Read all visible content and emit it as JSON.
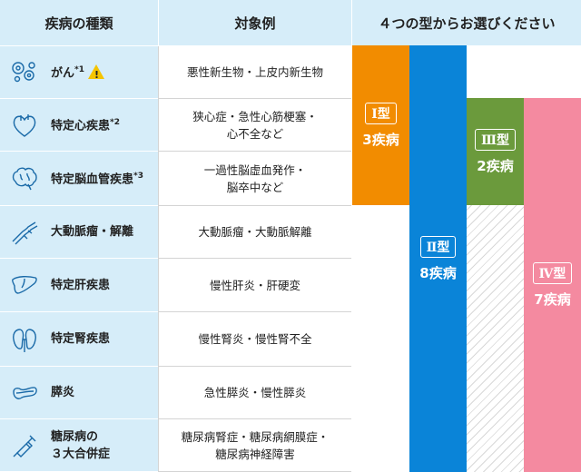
{
  "header": {
    "col1": "疾病の種類",
    "col2": "対象例",
    "col3": "４つの型からお選びください"
  },
  "rows": [
    {
      "icon": "cells-icon",
      "name": "がん",
      "note": "*1",
      "warning": true,
      "examples": [
        "悪性新生物・上皮内新生物"
      ]
    },
    {
      "icon": "heart-icon",
      "name": "特定心疾患",
      "note": "*2",
      "examples": [
        "狭心症・急性心筋梗塞・",
        "心不全など"
      ]
    },
    {
      "icon": "brain-icon",
      "name": "特定脳血管疾患",
      "note": "*3",
      "examples": [
        "一過性脳虚血発作・",
        "脳卒中など"
      ]
    },
    {
      "icon": "aorta-icon",
      "name": "大動脈瘤・解離",
      "note": "",
      "examples": [
        "大動脈瘤・大動脈解離"
      ]
    },
    {
      "icon": "liver-icon",
      "name": "特定肝疾患",
      "note": "",
      "examples": [
        "慢性肝炎・肝硬変"
      ]
    },
    {
      "icon": "kidney-icon",
      "name": "特定腎疾患",
      "note": "",
      "examples": [
        "慢性腎炎・慢性腎不全"
      ]
    },
    {
      "icon": "pancreas-icon",
      "name": "膵炎",
      "note": "",
      "examples": [
        "急性膵炎・慢性膵炎"
      ]
    },
    {
      "icon": "syringe-icon",
      "name": "糖尿病の",
      "name2": "３大合併症",
      "note": "",
      "examples": [
        "糖尿病腎症・糖尿病網膜症・",
        "糖尿病神経障害"
      ]
    }
  ],
  "types": [
    {
      "label": "Ⅰ型",
      "count": "3疾病",
      "color": "#f28c00"
    },
    {
      "label": "Ⅱ型",
      "count": "8疾病",
      "color": "#0a84d8"
    },
    {
      "label": "Ⅲ型",
      "count": "2疾病",
      "color": "#6b9a3c"
    },
    {
      "label": "Ⅳ型",
      "count": "7疾病",
      "color": "#f48aa0"
    }
  ]
}
